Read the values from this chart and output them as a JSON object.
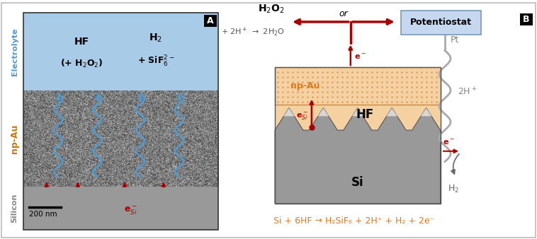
{
  "fig_width": 7.58,
  "fig_height": 3.38,
  "bg_color": "#ffffff",
  "border_color": "#bbbbbb",
  "label_A": "A",
  "label_B": "B",
  "blue_bg": "#a8cce8",
  "silicon_color": "#999999",
  "orange_bg": "#f5d0a0",
  "orange_dot": "#cc8844",
  "orange_text": "#e07820",
  "red_color": "#aa0000",
  "potentiostat_bg": "#c5d8f0",
  "potentiostat_border": "#7799bb",
  "gray_wire": "#aaaaaa",
  "electrolyte_color": "#5599cc",
  "npAu_color": "#cc7700",
  "silicon_label_color": "#888888",
  "bottom_eq": "Si + 6HF → H₂SiF₆ + 2H⁺ + H₂ + 2e⁻"
}
